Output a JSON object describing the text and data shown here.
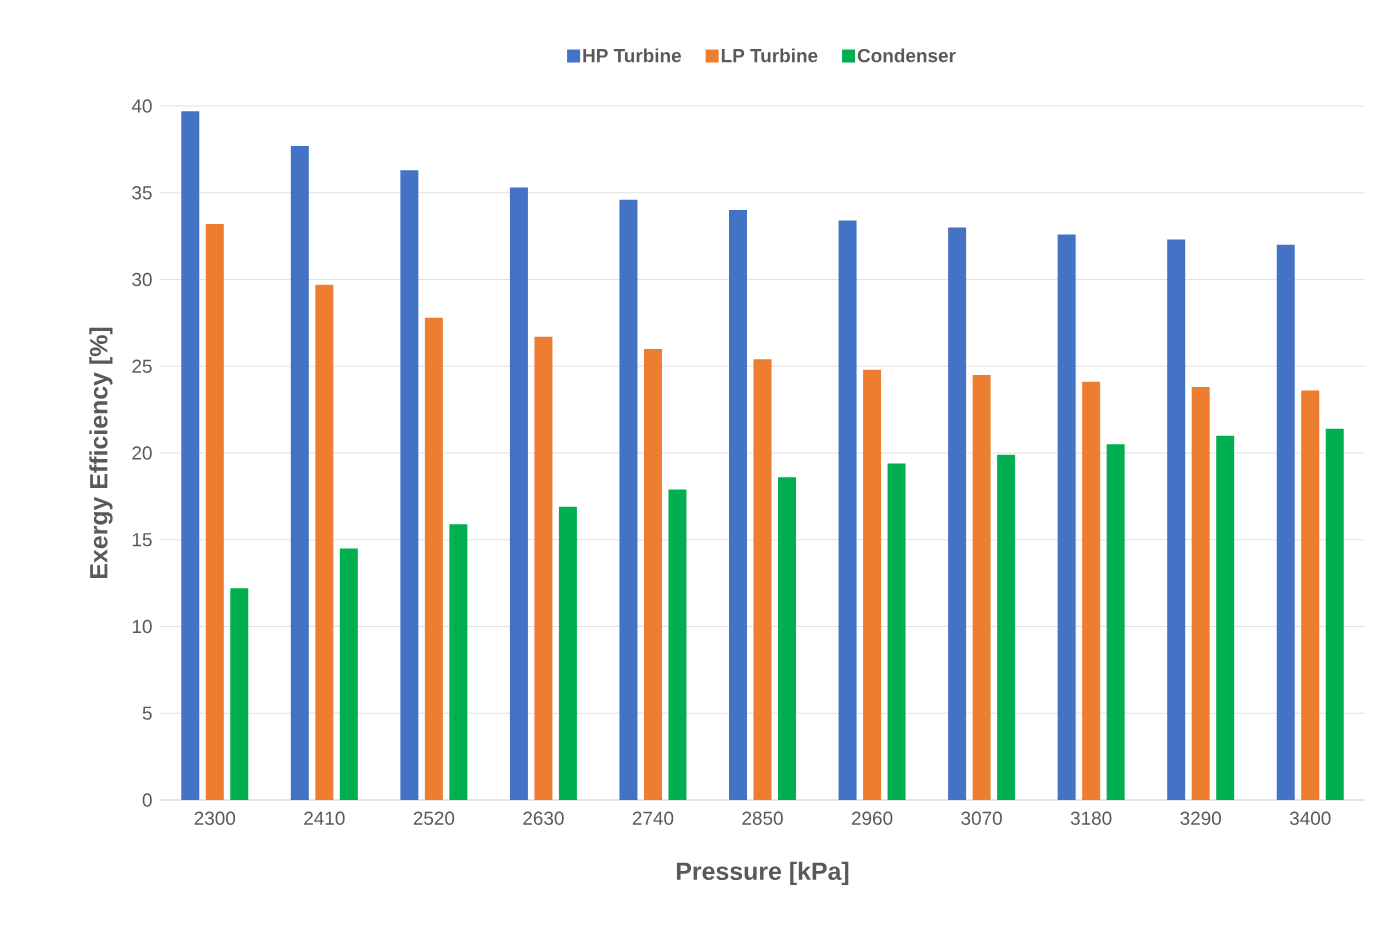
{
  "chart_data": {
    "type": "bar",
    "xlabel": "Pressure [kPa]",
    "ylabel": "Exergy Efficiency [%]",
    "categories": [
      "2300",
      "2410",
      "2520",
      "2630",
      "2740",
      "2850",
      "2960",
      "3070",
      "3180",
      "3290",
      "3400"
    ],
    "series": [
      {
        "name": "HP Turbine",
        "color": "#4472c4",
        "values": [
          39.7,
          37.7,
          36.3,
          35.3,
          34.6,
          34.0,
          33.4,
          33.0,
          32.6,
          32.3,
          32.0
        ]
      },
      {
        "name": "LP Turbine",
        "color": "#ed7d31",
        "values": [
          33.2,
          29.7,
          27.8,
          26.7,
          26.0,
          25.4,
          24.8,
          24.5,
          24.1,
          23.8,
          23.6
        ]
      },
      {
        "name": "Condenser",
        "color": "#00b050",
        "values": [
          12.2,
          14.5,
          15.9,
          16.9,
          17.9,
          18.6,
          19.4,
          19.9,
          20.5,
          21.0,
          21.4
        ]
      }
    ],
    "ylim": [
      0,
      40
    ],
    "yticks": [
      0,
      5,
      10,
      15,
      20,
      25,
      30,
      35,
      40
    ],
    "grid": "y",
    "legend": "top"
  }
}
